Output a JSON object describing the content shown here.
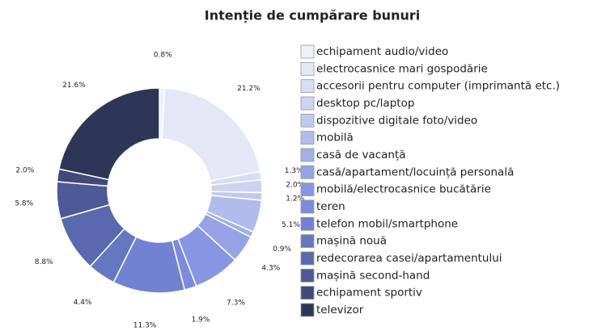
{
  "chart_data": {
    "type": "donut",
    "title": "Intenție de cumpărare bunuri",
    "categories": [
      "echipament audio/video",
      "electrocasnice mari gospodărie",
      "accesorii pentru computer (imprimantă etc.)",
      "desktop pc/laptop",
      "dispozitive digitale foto/video",
      "mobilă",
      "casă de vacanță",
      "casă/apartament/locuință personală",
      "mobilă/electrocasnice bucătărie",
      "teren",
      "telefon mobil/smartphone",
      "mașină nouă",
      "redecorarea casei/apartamentului",
      "mașină second-hand",
      "echipament sportiv",
      "televizor"
    ],
    "values": [
      0.8,
      21.2,
      1.3,
      2.0,
      1.2,
      5.1,
      0.9,
      4.3,
      7.3,
      1.9,
      11.3,
      4.4,
      8.8,
      5.8,
      2.0,
      21.6
    ],
    "value_labels": [
      "0.8%",
      "21.2%",
      "1.3%",
      "2.0%",
      "1.2%",
      "5.1%",
      "0.9%",
      "4.3%",
      "7.3%",
      "1.9%",
      "11.3%",
      "4.4%",
      "8.8%",
      "5.8%",
      "2.0%",
      "21.6%"
    ],
    "colors": [
      "#eef0f9",
      "#e3e7f6",
      "#d8ddf3",
      "#cdd3f0",
      "#c1c9ee",
      "#b2bcec",
      "#a3afe9",
      "#95a2e6",
      "#8796e3",
      "#7c8bdc",
      "#7282d3",
      "#6677c2",
      "#5a69ad",
      "#4d5a96",
      "#3f4a7b",
      "#2e3657"
    ],
    "legend": "right"
  }
}
